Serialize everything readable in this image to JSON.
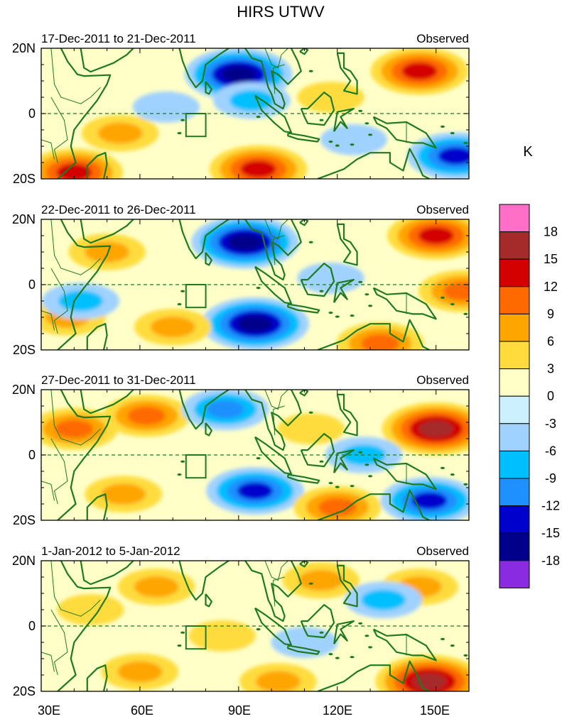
{
  "chart_data": {
    "type": "heatmap",
    "title": "HIRS UTWV",
    "x_tick_labels": [
      "30E",
      "60E",
      "90E",
      "120E",
      "150E"
    ],
    "x_ticks": [
      30,
      60,
      90,
      120,
      150
    ],
    "xlim": [
      30,
      160
    ],
    "y_tick_labels": [
      "20N",
      "0",
      "20S"
    ],
    "y_ticks": [
      20,
      0,
      -20
    ],
    "ylim": [
      -20,
      20
    ],
    "unit": "K",
    "colorbar": {
      "levels": [
        "18",
        "15",
        "12",
        "9",
        "6",
        "3",
        "0",
        "-3",
        "-6",
        "-9",
        "-12",
        "-15",
        "-18"
      ],
      "colors": [
        "#ff6fc7",
        "#a52a2a",
        "#d40000",
        "#ff6a00",
        "#ffa500",
        "#ffdc3c",
        "#ffffc8",
        "#cdf0ff",
        "#a0d2ff",
        "#00bfff",
        "#1e90ff",
        "#0000cd",
        "#00008b",
        "#8a2be2"
      ]
    },
    "reference_box": {
      "lon": [
        74,
        80
      ],
      "lat": [
        -7,
        0
      ]
    },
    "panels": [
      {
        "left_title": "17-Dec-2011 to 21-Dec-2011",
        "right_title": "Observed",
        "features": [
          {
            "lon": 90,
            "lat": 12,
            "value": -15
          },
          {
            "lon": 94,
            "lat": 4,
            "value": -6
          },
          {
            "lon": 68,
            "lat": 2,
            "value": -3
          },
          {
            "lon": 54,
            "lat": -6,
            "value": 6
          },
          {
            "lon": 96,
            "lat": -17,
            "value": 12
          },
          {
            "lon": 40,
            "lat": -18,
            "value": 12
          },
          {
            "lon": 145,
            "lat": 13,
            "value": 12
          },
          {
            "lon": 156,
            "lat": -13,
            "value": -12
          },
          {
            "lon": 118,
            "lat": 5,
            "value": 3
          },
          {
            "lon": 125,
            "lat": -8,
            "value": -3
          }
        ]
      },
      {
        "left_title": "22-Dec-2011 to 26-Dec-2011",
        "right_title": "Observed",
        "features": [
          {
            "lon": 92,
            "lat": 13,
            "value": -15
          },
          {
            "lon": 95,
            "lat": -12,
            "value": -15
          },
          {
            "lon": 50,
            "lat": 10,
            "value": 6
          },
          {
            "lon": 150,
            "lat": 15,
            "value": 12
          },
          {
            "lon": 38,
            "lat": -10,
            "value": 6
          },
          {
            "lon": 70,
            "lat": -13,
            "value": 6
          },
          {
            "lon": 133,
            "lat": -18,
            "value": 9
          },
          {
            "lon": 42,
            "lat": -5,
            "value": -6
          },
          {
            "lon": 118,
            "lat": 2,
            "value": -3
          },
          {
            "lon": 158,
            "lat": -2,
            "value": 9
          }
        ]
      },
      {
        "left_title": "27-Dec-2011 to 31-Dec-2011",
        "right_title": "Observed",
        "features": [
          {
            "lon": 40,
            "lat": 8,
            "value": 9
          },
          {
            "lon": 62,
            "lat": 12,
            "value": 9
          },
          {
            "lon": 150,
            "lat": 8,
            "value": 15
          },
          {
            "lon": 86,
            "lat": 14,
            "value": -9
          },
          {
            "lon": 95,
            "lat": -11,
            "value": -12
          },
          {
            "lon": 148,
            "lat": -14,
            "value": -12
          },
          {
            "lon": 112,
            "lat": 8,
            "value": 3
          },
          {
            "lon": 120,
            "lat": -16,
            "value": 9
          },
          {
            "lon": 55,
            "lat": -12,
            "value": 6
          },
          {
            "lon": 128,
            "lat": 0,
            "value": -6
          }
        ]
      },
      {
        "left_title": "1-Jan-2012 to 5-Jan-2012",
        "right_title": "Observed",
        "features": [
          {
            "lon": 65,
            "lat": 12,
            "value": 6
          },
          {
            "lon": 115,
            "lat": 14,
            "value": 6
          },
          {
            "lon": 145,
            "lat": 12,
            "value": 6
          },
          {
            "lon": 85,
            "lat": -3,
            "value": 3
          },
          {
            "lon": 134,
            "lat": 8,
            "value": -6
          },
          {
            "lon": 110,
            "lat": -5,
            "value": -3
          },
          {
            "lon": 60,
            "lat": -14,
            "value": 6
          },
          {
            "lon": 102,
            "lat": -17,
            "value": 6
          },
          {
            "lon": 148,
            "lat": -17,
            "value": 15
          },
          {
            "lon": 45,
            "lat": 5,
            "value": 3
          }
        ]
      }
    ]
  }
}
